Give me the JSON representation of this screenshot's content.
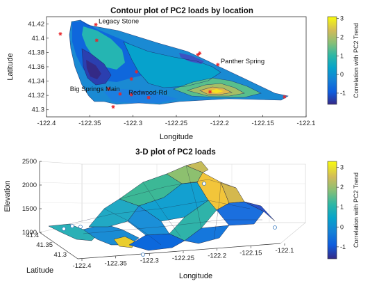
{
  "chart_data": [
    {
      "type": "contour",
      "title": "Contour plot of PC2 loads by location",
      "xlabel": "Longitude",
      "ylabel": "Latitude",
      "xlim": [
        -122.4,
        -122.1
      ],
      "ylim": [
        41.29,
        41.43
      ],
      "xticks": [
        -122.4,
        -122.35,
        -122.3,
        -122.25,
        -122.2,
        -122.15,
        -122.1
      ],
      "yticks": [
        41.3,
        41.32,
        41.34,
        41.36,
        41.38,
        41.4,
        41.42
      ],
      "xtick_labels": [
        "-122.4",
        "-122.35",
        "-122.3",
        "-122.25",
        "-122.2",
        "-122.15",
        "-122.1"
      ],
      "ytick_labels": [
        "41.3",
        "41.32",
        "41.34",
        "41.36",
        "41.38",
        "41.4",
        "41.42"
      ],
      "colorbar": {
        "label": "Correlation with PC2 Trend",
        "range": [
          -1.6,
          3.1
        ],
        "ticks": [
          -1,
          0,
          1,
          2,
          3
        ],
        "tick_labels": [
          "-1",
          "0",
          "1",
          "2",
          "3"
        ]
      },
      "sites": [
        {
          "name": "Legacy Stone",
          "lon": -122.343,
          "lat": 41.419
        },
        {
          "name": "Panther Spring",
          "lon": -122.202,
          "lat": 41.363
        },
        {
          "name": "Big Springs Main",
          "lon": -122.328,
          "lat": 41.329
        },
        {
          "name": "Redwood-Rd",
          "lon": -122.302,
          "lat": 41.321
        }
      ],
      "points": [
        {
          "lon": -122.384,
          "lat": 41.406
        },
        {
          "lon": -122.343,
          "lat": 41.419
        },
        {
          "lon": -122.342,
          "lat": 41.397
        },
        {
          "lon": -122.225,
          "lat": 41.377
        },
        {
          "lon": -122.223,
          "lat": 41.379
        },
        {
          "lon": -122.202,
          "lat": 41.363
        },
        {
          "lon": -122.296,
          "lat": 41.353
        },
        {
          "lon": -122.302,
          "lat": 41.343
        },
        {
          "lon": -122.328,
          "lat": 41.329
        },
        {
          "lon": -122.315,
          "lat": 41.322
        },
        {
          "lon": -122.302,
          "lat": 41.321
        },
        {
          "lon": -122.282,
          "lat": 41.317
        },
        {
          "lon": -122.211,
          "lat": 41.325
        },
        {
          "lon": -122.125,
          "lat": 41.318
        },
        {
          "lon": -122.323,
          "lat": 41.304
        }
      ]
    },
    {
      "type": "surface3d",
      "title": "3-D plot of PC2 loads",
      "xlabel": "Longitude",
      "ylabel": "Latitude",
      "zlabel": "Elevation",
      "xticks": [
        -122.4,
        -122.35,
        -122.3,
        -122.25,
        -122.2,
        -122.15,
        -122.1
      ],
      "xtick_labels": [
        "-122.4",
        "-122.35",
        "-122.3",
        "-122.25",
        "-122.2",
        "-122.15",
        "-122.1"
      ],
      "yticks": [
        41.3,
        41.35,
        41.4
      ],
      "ytick_labels": [
        "41.3",
        "41.35",
        "41.4"
      ],
      "zticks": [
        1000,
        1500,
        2000,
        2500
      ],
      "ztick_labels": [
        "1000",
        "1500",
        "2000",
        "2500"
      ],
      "zlim": [
        1000,
        2500
      ],
      "colorbar": {
        "label": "Correlation with PC2 Trend",
        "range": [
          -1.6,
          3.3
        ],
        "ticks": [
          -1,
          0,
          1,
          2,
          3
        ],
        "tick_labels": [
          "-1",
          "0",
          "1",
          "2",
          "3"
        ]
      }
    }
  ]
}
